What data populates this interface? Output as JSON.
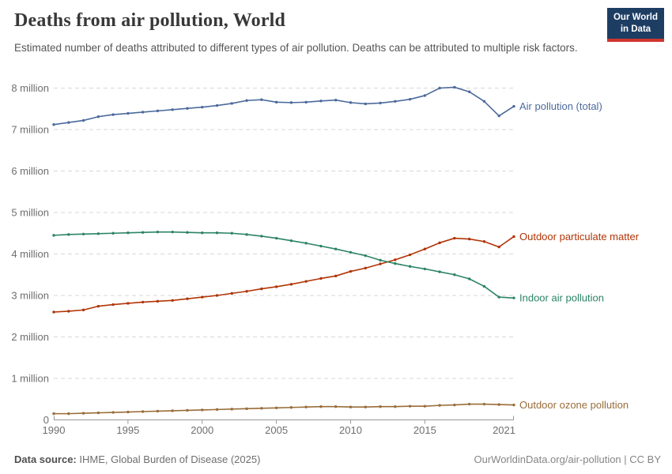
{
  "header": {
    "title": "Deaths from air pollution, World",
    "subtitle": "Estimated number of deaths attributed to different types of air pollution. Deaths can be attributed to multiple risk factors.",
    "logo": {
      "line1": "Our World",
      "line2": "in Data",
      "bg": "#1d3d63",
      "accent": "#cf352e"
    }
  },
  "footer": {
    "source_label": "Data source:",
    "source_text": " IHME, Global Burden of Disease (2025)",
    "credit": "OurWorldinData.org/air-pollution | CC BY"
  },
  "chart_data": {
    "type": "line",
    "title": "Deaths from air pollution, World",
    "xlabel": "",
    "ylabel": "",
    "unit": "deaths (millions)",
    "grid": "horizontal-dashed",
    "legend_position": "right-of-line-ends",
    "ylim": [
      0,
      8.4
    ],
    "x": [
      1990,
      1991,
      1992,
      1993,
      1994,
      1995,
      1996,
      1997,
      1998,
      1999,
      2000,
      2001,
      2002,
      2003,
      2004,
      2005,
      2006,
      2007,
      2008,
      2009,
      2010,
      2011,
      2012,
      2013,
      2014,
      2015,
      2016,
      2017,
      2018,
      2019,
      2020,
      2021
    ],
    "xtick_years": [
      1990,
      1995,
      2000,
      2005,
      2010,
      2015,
      2021
    ],
    "yticks": [
      {
        "v": 0,
        "label": "0"
      },
      {
        "v": 1,
        "label": "1 million"
      },
      {
        "v": 2,
        "label": "2 million"
      },
      {
        "v": 3,
        "label": "3 million"
      },
      {
        "v": 4,
        "label": "4 million"
      },
      {
        "v": 5,
        "label": "5 million"
      },
      {
        "v": 6,
        "label": "6 million"
      },
      {
        "v": 7,
        "label": "7 million"
      },
      {
        "v": 8,
        "label": "8 million"
      }
    ],
    "series": [
      {
        "name": "Air pollution (total)",
        "color": "#4C6A9C",
        "values": [
          7.12,
          7.17,
          7.22,
          7.31,
          7.36,
          7.39,
          7.42,
          7.45,
          7.48,
          7.51,
          7.54,
          7.58,
          7.63,
          7.7,
          7.72,
          7.66,
          7.65,
          7.66,
          7.69,
          7.71,
          7.65,
          7.62,
          7.64,
          7.68,
          7.73,
          7.82,
          8.0,
          8.02,
          7.91,
          7.68,
          7.33,
          7.56
        ]
      },
      {
        "name": "Outdoor particulate matter",
        "color": "#B13507",
        "values": [
          2.6,
          2.62,
          2.65,
          2.74,
          2.78,
          2.81,
          2.84,
          2.86,
          2.88,
          2.92,
          2.96,
          3.0,
          3.05,
          3.1,
          3.16,
          3.21,
          3.27,
          3.34,
          3.41,
          3.47,
          3.58,
          3.66,
          3.76,
          3.86,
          3.98,
          4.12,
          4.27,
          4.38,
          4.36,
          4.3,
          4.17,
          4.42
        ]
      },
      {
        "name": "Indoor air pollution",
        "color": "#2C8465",
        "values": [
          4.45,
          4.47,
          4.48,
          4.49,
          4.5,
          4.51,
          4.52,
          4.53,
          4.53,
          4.52,
          4.51,
          4.51,
          4.5,
          4.47,
          4.43,
          4.38,
          4.32,
          4.26,
          4.19,
          4.12,
          4.04,
          3.96,
          3.85,
          3.77,
          3.7,
          3.64,
          3.57,
          3.5,
          3.4,
          3.22,
          2.96,
          2.94
        ]
      },
      {
        "name": "Outdoor ozone pollution",
        "color": "#996D39",
        "values": [
          0.15,
          0.15,
          0.16,
          0.17,
          0.18,
          0.19,
          0.2,
          0.21,
          0.22,
          0.23,
          0.24,
          0.25,
          0.26,
          0.27,
          0.28,
          0.29,
          0.3,
          0.31,
          0.32,
          0.32,
          0.31,
          0.31,
          0.32,
          0.32,
          0.33,
          0.33,
          0.35,
          0.36,
          0.38,
          0.38,
          0.37,
          0.36
        ]
      }
    ]
  }
}
